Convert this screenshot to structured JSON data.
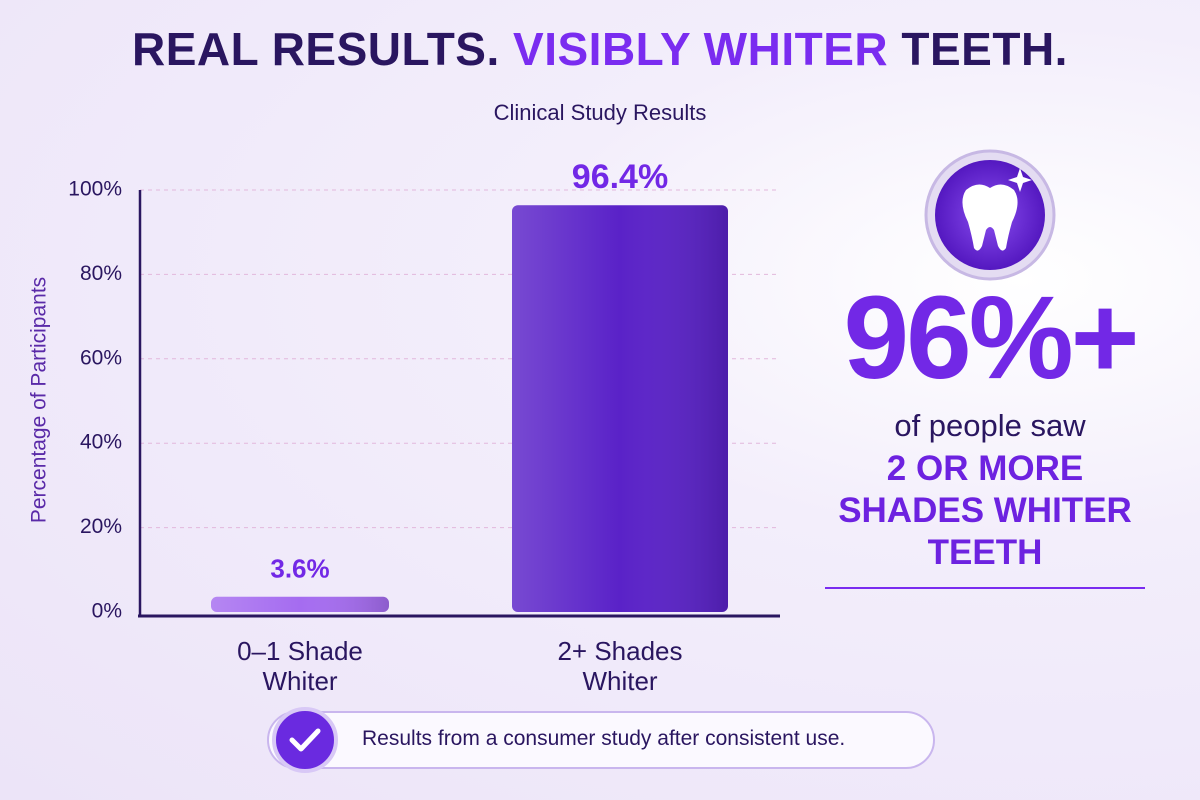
{
  "chart_data": {
    "type": "bar",
    "title_parts": [
      "REAL RESULTS. ",
      "VISIBLY WHITER",
      " TEETH."
    ],
    "subtitle": "Clinical Study Results",
    "y_label": "Percentage of Participants",
    "categories": [
      "0–1 Shade Whiter",
      "2+ Shades Whiter"
    ],
    "values": [
      3.6,
      96.4
    ],
    "value_labels": [
      "3.6%",
      "96.4%"
    ],
    "colors": [
      "#a56cf0",
      "#5a22c8"
    ],
    "ylim": [
      0,
      100
    ],
    "yticks": [
      {
        "value": 0,
        "label": "0%"
      },
      {
        "value": 20,
        "label": "20%"
      },
      {
        "value": 40,
        "label": "40%"
      },
      {
        "value": 60,
        "label": "60%"
      },
      {
        "value": 80,
        "label": "80%"
      },
      {
        "value": 100,
        "label": "100%"
      }
    ],
    "grid": true
  },
  "callout": {
    "stat": "96%+",
    "text": "of people saw",
    "highlight": "2 OR MORE SHADES WHITER TEETH"
  },
  "footnote": "Results from a consumer study after consistent use."
}
